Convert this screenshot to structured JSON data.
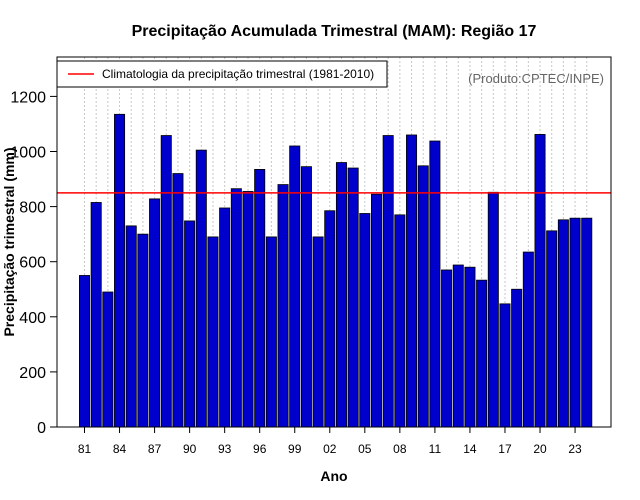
{
  "chart_data": {
    "type": "bar",
    "title": "Precipitação Acumulada Trimestral (MAM): Região 17",
    "xlabel": "Ano",
    "ylabel": "Precipitação trimestral (mm)",
    "credit": "(Produto:CPTEC/INPE)",
    "ylim": [
      0,
      1320
    ],
    "yticks": [
      0,
      200,
      400,
      600,
      800,
      1000,
      1200
    ],
    "ytick_labels": [
      "0",
      "200",
      "400",
      "600",
      "800",
      "1000",
      "1200"
    ],
    "categories": [
      "1981",
      "1982",
      "1983",
      "1984",
      "1985",
      "1986",
      "1987",
      "1988",
      "1989",
      "1990",
      "1991",
      "1992",
      "1993",
      "1994",
      "1995",
      "1996",
      "1997",
      "1998",
      "1999",
      "2000",
      "2001",
      "2002",
      "2003",
      "2004",
      "2005",
      "2006",
      "2007",
      "2008",
      "2009",
      "2010",
      "2011",
      "2012",
      "2013",
      "2014",
      "2015",
      "2016",
      "2017",
      "2018",
      "2019",
      "2020",
      "2021",
      "2022",
      "2023",
      "2024"
    ],
    "xtick_labels": [
      "81",
      "84",
      "87",
      "90",
      "93",
      "96",
      "99",
      "02",
      "05",
      "08",
      "11",
      "14",
      "17",
      "20",
      "23"
    ],
    "xtick_indices": [
      0,
      3,
      6,
      9,
      12,
      15,
      18,
      21,
      24,
      27,
      30,
      33,
      36,
      39,
      42
    ],
    "values": [
      550,
      815,
      490,
      1135,
      730,
      700,
      828,
      1058,
      920,
      748,
      1005,
      690,
      795,
      865,
      855,
      935,
      690,
      880,
      1020,
      945,
      690,
      785,
      960,
      940,
      775,
      845,
      1058,
      770,
      1060,
      948,
      1038,
      570,
      588,
      580,
      533,
      852,
      447,
      500,
      635,
      1062,
      712,
      752,
      758,
      758
    ],
    "bar_color": "#0000CC",
    "climatology": {
      "label": "Climatologia da precipitação trimestral (1981-2010)",
      "value": 850,
      "color": "#FF0000"
    },
    "legend_position": "top-left",
    "grid": "vertical-dotted"
  }
}
